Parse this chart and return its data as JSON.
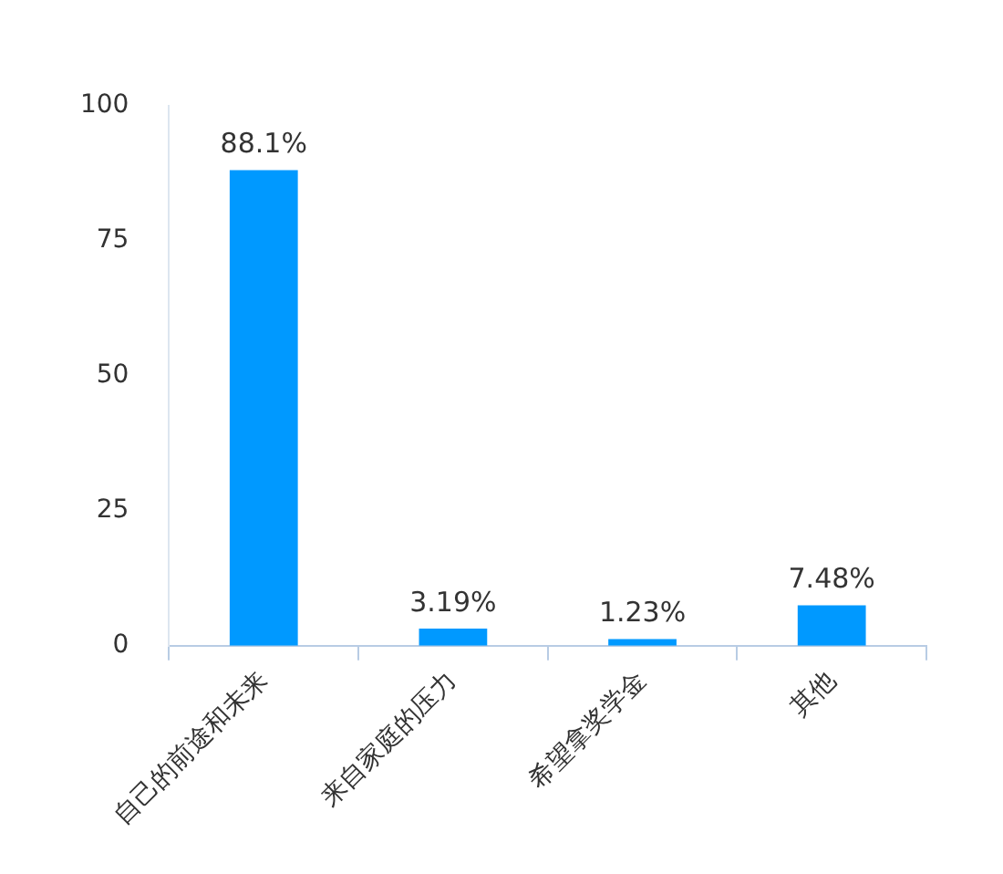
{
  "chart_data": {
    "type": "bar",
    "categories": [
      "自己的前途和未来",
      "来自家庭的压力",
      "希望拿奖学金",
      "其他"
    ],
    "values": [
      88.1,
      3.19,
      1.23,
      7.48
    ],
    "value_labels": [
      "88.1%",
      "3.19%",
      "1.23%",
      "7.48%"
    ],
    "color": "#0099ff",
    "ylim": [
      0,
      100
    ],
    "yticks": [
      0,
      25,
      50,
      75,
      100
    ],
    "grid": false,
    "legend": false
  }
}
